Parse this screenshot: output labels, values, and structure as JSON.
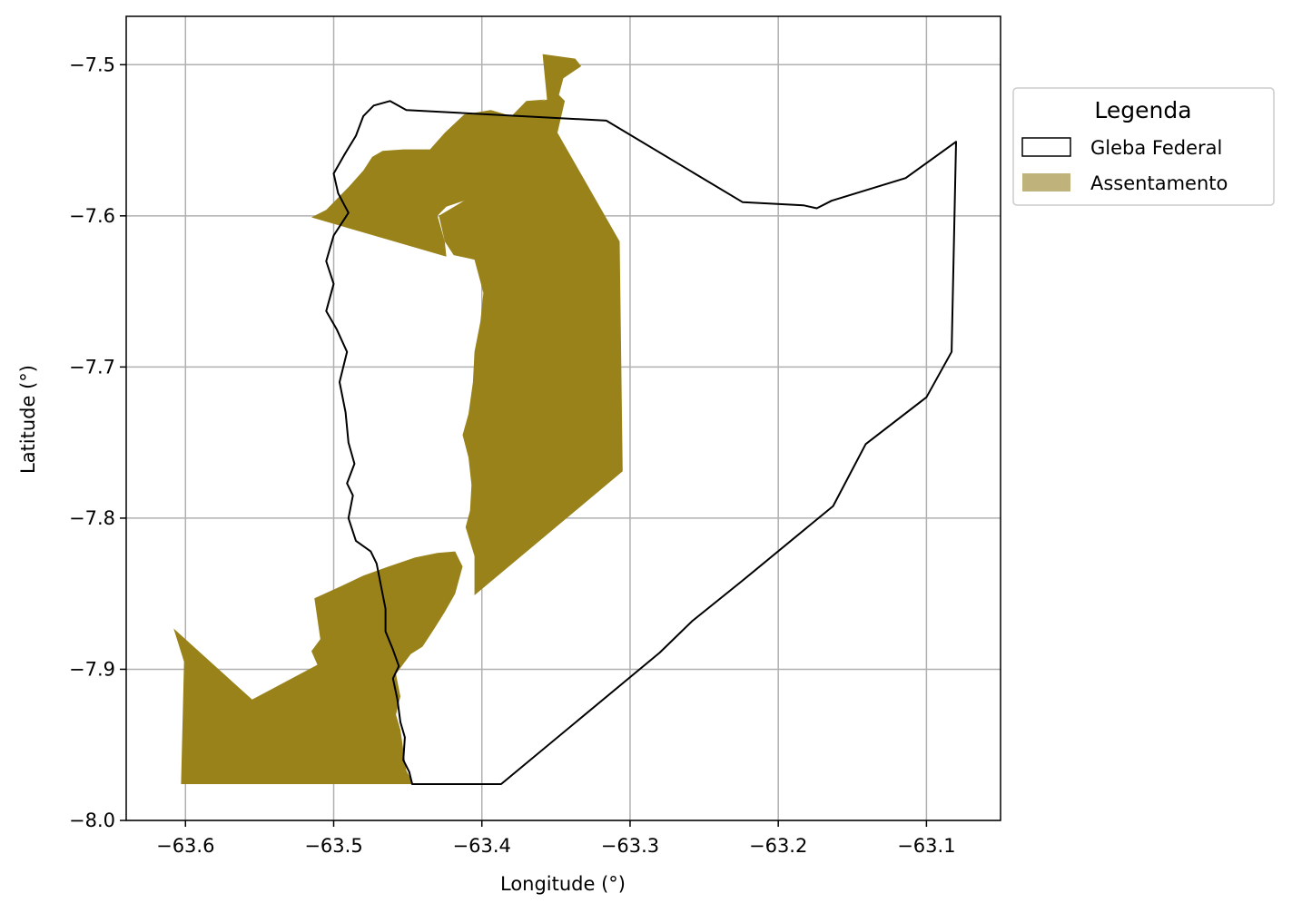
{
  "map": {
    "xlabel": "Longitude (°)",
    "ylabel": "Latitude (°)",
    "xlim": [
      -63.64,
      -63.05
    ],
    "ylim": [
      -8.0,
      -7.468
    ],
    "xticks": [
      -63.6,
      -63.5,
      -63.4,
      -63.3,
      -63.2,
      -63.1
    ],
    "xtick_labels": [
      "−63.6",
      "−63.5",
      "−63.4",
      "−63.3",
      "−63.2",
      "−63.1"
    ],
    "yticks": [
      -7.5,
      -7.6,
      -7.7,
      -7.8,
      -7.9,
      -8.0
    ],
    "ytick_labels": [
      "−7.5",
      "−7.6",
      "−7.7",
      "−7.8",
      "−7.9",
      "−8.0"
    ],
    "grid": true,
    "legend": {
      "title": "Legenda",
      "placement": "outside upper right",
      "items": [
        {
          "label": "Gleba Federal",
          "style": "outline",
          "edge_color": "#000000",
          "fill_color": "#ffffff"
        },
        {
          "label": "Assentamento",
          "style": "fill",
          "fill_color": "#bfb27a"
        }
      ]
    },
    "layers": {
      "assentamento": {
        "fill_color": "#99821a",
        "polygons": [
          [
            [
              -63.359,
              -7.493
            ],
            [
              -63.337,
              -7.496
            ],
            [
              -63.333,
              -7.501
            ],
            [
              -63.345,
              -7.509
            ],
            [
              -63.348,
              -7.52
            ],
            [
              -63.344,
              -7.524
            ],
            [
              -63.349,
              -7.545
            ],
            [
              -63.307,
              -7.617
            ],
            [
              -63.305,
              -7.769
            ],
            [
              -63.405,
              -7.851
            ],
            [
              -63.405,
              -7.825
            ],
            [
              -63.411,
              -7.806
            ],
            [
              -63.408,
              -7.795
            ],
            [
              -63.407,
              -7.778
            ],
            [
              -63.409,
              -7.76
            ],
            [
              -63.413,
              -7.745
            ],
            [
              -63.409,
              -7.731
            ],
            [
              -63.406,
              -7.71
            ],
            [
              -63.405,
              -7.69
            ],
            [
              -63.401,
              -7.67
            ],
            [
              -63.399,
              -7.651
            ],
            [
              -63.405,
              -7.629
            ],
            [
              -63.419,
              -7.626
            ],
            [
              -63.425,
              -7.617
            ],
            [
              -63.429,
              -7.6
            ],
            [
              -63.412,
              -7.59
            ],
            [
              -63.399,
              -7.575
            ],
            [
              -63.396,
              -7.56
            ],
            [
              -63.391,
              -7.549
            ],
            [
              -63.382,
              -7.541
            ],
            [
              -63.376,
              -7.532
            ],
            [
              -63.367,
              -7.526
            ],
            [
              -63.356,
              -7.523
            ]
          ],
          [
            [
              -63.357,
              -7.523
            ],
            [
              -63.368,
              -7.527
            ],
            [
              -63.375,
              -7.536
            ],
            [
              -63.37,
              -7.549
            ],
            [
              -63.38,
              -7.556
            ],
            [
              -63.388,
              -7.562
            ],
            [
              -63.396,
              -7.57
            ],
            [
              -63.401,
              -7.582
            ],
            [
              -63.412,
              -7.59
            ],
            [
              -63.424,
              -7.594
            ],
            [
              -63.43,
              -7.6
            ],
            [
              -63.425,
              -7.617
            ],
            [
              -63.424,
              -7.627
            ],
            [
              -63.515,
              -7.601
            ],
            [
              -63.505,
              -7.596
            ],
            [
              -63.49,
              -7.581
            ],
            [
              -63.48,
              -7.57
            ],
            [
              -63.474,
              -7.561
            ],
            [
              -63.467,
              -7.557
            ],
            [
              -63.453,
              -7.556
            ],
            [
              -63.435,
              -7.556
            ],
            [
              -63.425,
              -7.545
            ],
            [
              -63.412,
              -7.533
            ],
            [
              -63.394,
              -7.53
            ],
            [
              -63.38,
              -7.534
            ],
            [
              -63.37,
              -7.524
            ]
          ],
          [
            [
              -63.603,
              -7.976
            ],
            [
              -63.446,
              -7.976
            ],
            [
              -63.451,
              -7.967
            ],
            [
              -63.455,
              -7.94
            ],
            [
              -63.458,
              -7.93
            ],
            [
              -63.455,
              -7.918
            ],
            [
              -63.458,
              -7.903
            ],
            [
              -63.448,
              -7.89
            ],
            [
              -63.44,
              -7.885
            ],
            [
              -63.432,
              -7.873
            ],
            [
              -63.425,
              -7.862
            ],
            [
              -63.418,
              -7.85
            ],
            [
              -63.413,
              -7.832
            ],
            [
              -63.418,
              -7.822
            ],
            [
              -63.43,
              -7.823
            ],
            [
              -63.445,
              -7.826
            ],
            [
              -63.463,
              -7.832
            ],
            [
              -63.48,
              -7.838
            ],
            [
              -63.495,
              -7.845
            ],
            [
              -63.513,
              -7.853
            ],
            [
              -63.509,
              -7.88
            ],
            [
              -63.515,
              -7.888
            ],
            [
              -63.511,
              -7.897
            ],
            [
              -63.555,
              -7.92
            ],
            [
              -63.608,
              -7.873
            ],
            [
              -63.601,
              -7.895
            ]
          ]
        ]
      },
      "gleba_federal": {
        "edge_color": "#000000",
        "fill_color": "#ffffff",
        "polygons": [
          [
            [
              -63.387,
              -7.976
            ],
            [
              -63.447,
              -7.976
            ],
            [
              -63.449,
              -7.968
            ],
            [
              -63.453,
              -7.96
            ],
            [
              -63.452,
              -7.945
            ],
            [
              -63.455,
              -7.935
            ],
            [
              -63.457,
              -7.92
            ],
            [
              -63.46,
              -7.906
            ],
            [
              -63.456,
              -7.898
            ],
            [
              -63.46,
              -7.887
            ],
            [
              -63.465,
              -7.875
            ],
            [
              -63.465,
              -7.86
            ],
            [
              -63.468,
              -7.845
            ],
            [
              -63.471,
              -7.83
            ],
            [
              -63.475,
              -7.822
            ],
            [
              -63.485,
              -7.815
            ],
            [
              -63.49,
              -7.8
            ],
            [
              -63.487,
              -7.785
            ],
            [
              -63.491,
              -7.777
            ],
            [
              -63.486,
              -7.764
            ],
            [
              -63.49,
              -7.75
            ],
            [
              -63.492,
              -7.73
            ],
            [
              -63.496,
              -7.71
            ],
            [
              -63.491,
              -7.69
            ],
            [
              -63.498,
              -7.675
            ],
            [
              -63.505,
              -7.663
            ],
            [
              -63.5,
              -7.645
            ],
            [
              -63.505,
              -7.63
            ],
            [
              -63.5,
              -7.613
            ],
            [
              -63.49,
              -7.598
            ],
            [
              -63.497,
              -7.585
            ],
            [
              -63.5,
              -7.572
            ],
            [
              -63.493,
              -7.56
            ],
            [
              -63.485,
              -7.547
            ],
            [
              -63.48,
              -7.534
            ],
            [
              -63.473,
              -7.527
            ],
            [
              -63.462,
              -7.524
            ],
            [
              -63.451,
              -7.53
            ],
            [
              -63.316,
              -7.537
            ],
            [
              -63.224,
              -7.591
            ],
            [
              -63.183,
              -7.593
            ],
            [
              -63.174,
              -7.595
            ],
            [
              -63.164,
              -7.59
            ],
            [
              -63.114,
              -7.575
            ],
            [
              -63.08,
              -7.551
            ],
            [
              -63.083,
              -7.69
            ],
            [
              -63.1,
              -7.72
            ],
            [
              -63.141,
              -7.751
            ],
            [
              -63.163,
              -7.792
            ],
            [
              -63.225,
              -7.842
            ],
            [
              -63.258,
              -7.868
            ],
            [
              -63.28,
              -7.889
            ]
          ]
        ]
      }
    }
  }
}
